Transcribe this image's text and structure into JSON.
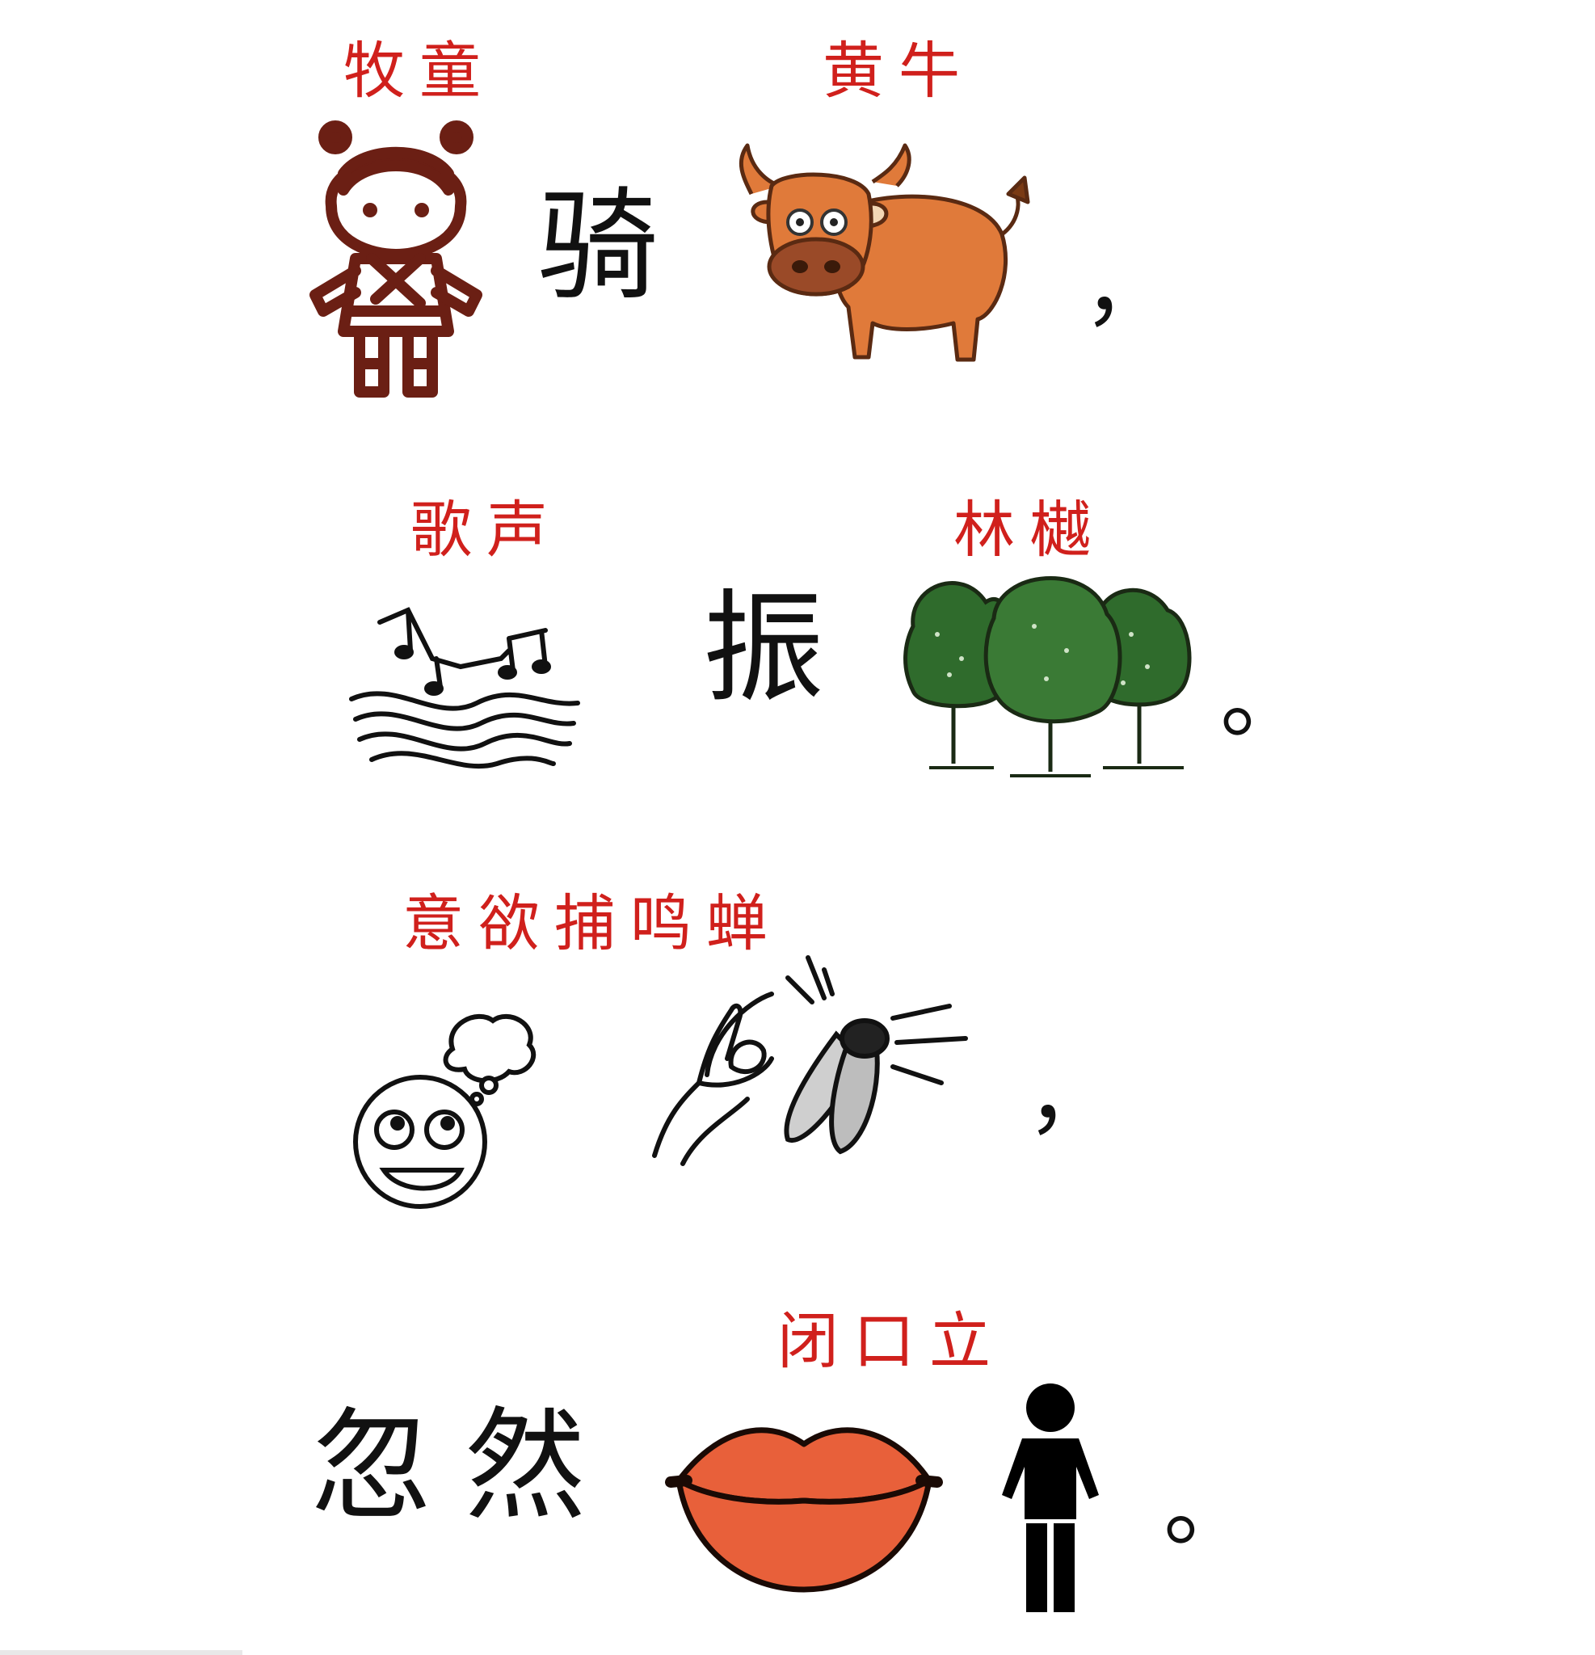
{
  "rows": [
    {
      "labels": [
        "牧童",
        "黄牛"
      ],
      "verb": "骑",
      "punct": "，",
      "icons": [
        "child-icon",
        "ox-icon"
      ]
    },
    {
      "labels": [
        "歌声",
        "林樾"
      ],
      "verb": "振",
      "punct": "。",
      "icons": [
        "music-staff-icon",
        "trees-icon"
      ]
    },
    {
      "labels": [
        "意欲捕鸣蝉"
      ],
      "punct": "，",
      "icons": [
        "thinking-face-icon",
        "catch-cicada-icon"
      ]
    },
    {
      "labels": [
        "闭口立"
      ],
      "prefix": "忽然",
      "punct": "。",
      "icons": [
        "lips-icon",
        "standing-person-icon"
      ]
    }
  ],
  "colors": {
    "label": "#d0201c",
    "text": "#111111",
    "ox": "#e07a3a",
    "lips": "#e8603a",
    "tree": "#2f6b2c",
    "child": "#6b1f14"
  }
}
